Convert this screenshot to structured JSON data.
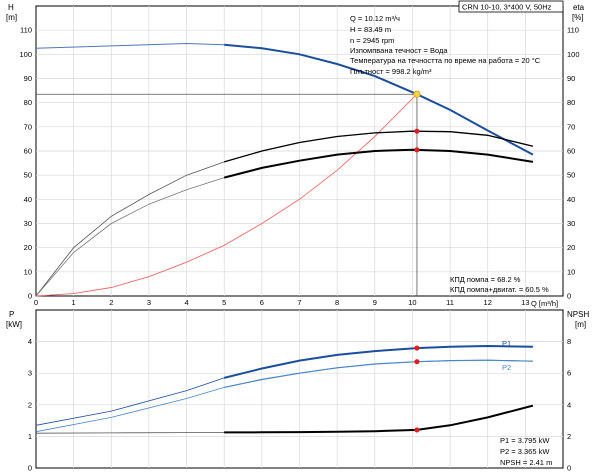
{
  "header": {
    "pump_model": "CRN 10-10, 3*400 V, 50Hz",
    "left_axis_top": "H\n[m]",
    "right_axis_top": "eta\n[%]",
    "left_axis_bottom": "P\n[kW]",
    "right_axis_bottom": "NPSH\n[m]"
  },
  "info_top": [
    "Q = 10.12 m³/ч",
    "H = 83.49 m",
    "n = 2945 rpm",
    "Изпомпвана течност = Вода",
    "Температура на течността по време на работа = 20 °C",
    "Плътност = 998.2 kg/m³"
  ],
  "eff_labels": [
    "КПД помпа = 68.2 %",
    "КПД помпа+двигат. = 60.5 %"
  ],
  "info_bottom": [
    "P1 = 3.795 kW",
    "P2 = 3.365 kW",
    "NPSH = 2.41 m"
  ],
  "colors": {
    "head": "#1c4e9c",
    "head_light": "#4f76b8",
    "eff_pump": "#000000",
    "eff_total": "#000000",
    "system": "#f06a6a",
    "marker": "#e02020",
    "duty": "#f5d442",
    "grid": "#d8d8d8",
    "p1": "#1c4e9c",
    "p2": "#4a86c8",
    "npsh": "#000000"
  },
  "chart_data": [
    {
      "type": "line",
      "title": "",
      "xlabel": "Q [m³/h]",
      "ylabel": "H [m]",
      "y2label": "eta [%]",
      "xlim": [
        0,
        14
      ],
      "ylim": [
        0,
        120
      ],
      "xticks": [
        0,
        1,
        2,
        3,
        4,
        5,
        6,
        7,
        8,
        9,
        10,
        11,
        12,
        13
      ],
      "yticks": [
        0,
        10,
        20,
        30,
        40,
        50,
        60,
        70,
        80,
        90,
        100,
        110
      ],
      "grid": true,
      "series": [
        {
          "id": "head",
          "axis": "H",
          "x": [
            0,
            2,
            4,
            5,
            6,
            7,
            8,
            9,
            10.12,
            11,
            12,
            13.2
          ],
          "y": [
            102.5,
            103.5,
            104.5,
            104,
            102.5,
            100,
            96,
            91,
            83.5,
            77,
            68.5,
            58.5
          ]
        },
        {
          "id": "eff_pump",
          "axis": "eta",
          "x": [
            0,
            1,
            2,
            3,
            4,
            5,
            6,
            7,
            8,
            9,
            10,
            11,
            12,
            13.2
          ],
          "y": [
            0,
            20,
            33,
            42,
            50,
            55.5,
            60,
            63.5,
            66,
            67.5,
            68.2,
            68,
            66.5,
            62
          ]
        },
        {
          "id": "eff_total",
          "axis": "eta",
          "x": [
            0,
            1,
            2,
            3,
            4,
            5,
            6,
            7,
            8,
            9,
            10,
            11,
            12,
            13.2
          ],
          "y": [
            0,
            18,
            30,
            38,
            44,
            49,
            53,
            56,
            58.5,
            60,
            60.5,
            60,
            58.5,
            55.5
          ]
        },
        {
          "id": "system",
          "axis": "H",
          "x": [
            0,
            1,
            2,
            3,
            4,
            5,
            6,
            7,
            8,
            9,
            10.12
          ],
          "y": [
            0,
            1,
            3.5,
            8,
            14,
            21,
            30,
            40,
            52,
            66,
            83.5
          ]
        }
      ],
      "duty_points": [
        {
          "series": "head",
          "x": 10.12,
          "y": 83.49
        },
        {
          "series": "eff_pump",
          "x": 10.12,
          "y": 68.2
        },
        {
          "series": "eff_total",
          "x": 10.12,
          "y": 60.5
        }
      ]
    },
    {
      "type": "line",
      "title": "",
      "xlabel": "Q [m³/h]",
      "ylabel": "P [kW]",
      "y2label": "NPSH [m]",
      "xlim": [
        0,
        14
      ],
      "ylim": [
        0,
        5
      ],
      "y2lim": [
        0,
        10
      ],
      "yticks": [
        0,
        1,
        2,
        3,
        4
      ],
      "y2ticks": [
        0,
        2,
        4,
        6,
        8
      ],
      "grid": true,
      "series": [
        {
          "id": "p1",
          "name": "P1",
          "axis": "P",
          "x": [
            0,
            2,
            4,
            5,
            6,
            7,
            8,
            9,
            10.12,
            11,
            12,
            13.2
          ],
          "y": [
            1.35,
            1.8,
            2.45,
            2.85,
            3.15,
            3.4,
            3.58,
            3.7,
            3.795,
            3.84,
            3.86,
            3.84
          ]
        },
        {
          "id": "p2",
          "name": "P2",
          "axis": "P",
          "x": [
            0,
            2,
            4,
            5,
            6,
            7,
            8,
            9,
            10.12,
            11,
            12,
            13.2
          ],
          "y": [
            1.15,
            1.6,
            2.2,
            2.55,
            2.8,
            3.0,
            3.17,
            3.29,
            3.365,
            3.4,
            3.41,
            3.38
          ]
        },
        {
          "id": "npsh",
          "axis": "NPSH",
          "x": [
            0,
            2,
            4,
            5,
            6,
            7,
            8,
            9,
            10.12,
            11,
            12,
            13.2
          ],
          "y": [
            2.2,
            2.22,
            2.24,
            2.25,
            2.26,
            2.27,
            2.3,
            2.33,
            2.41,
            2.7,
            3.2,
            3.95
          ]
        }
      ],
      "duty_points": [
        {
          "series": "p1",
          "x": 10.12,
          "y": 3.795
        },
        {
          "series": "p2",
          "x": 10.12,
          "y": 3.365
        },
        {
          "series": "npsh",
          "x": 10.12,
          "y": 2.41
        }
      ]
    }
  ]
}
